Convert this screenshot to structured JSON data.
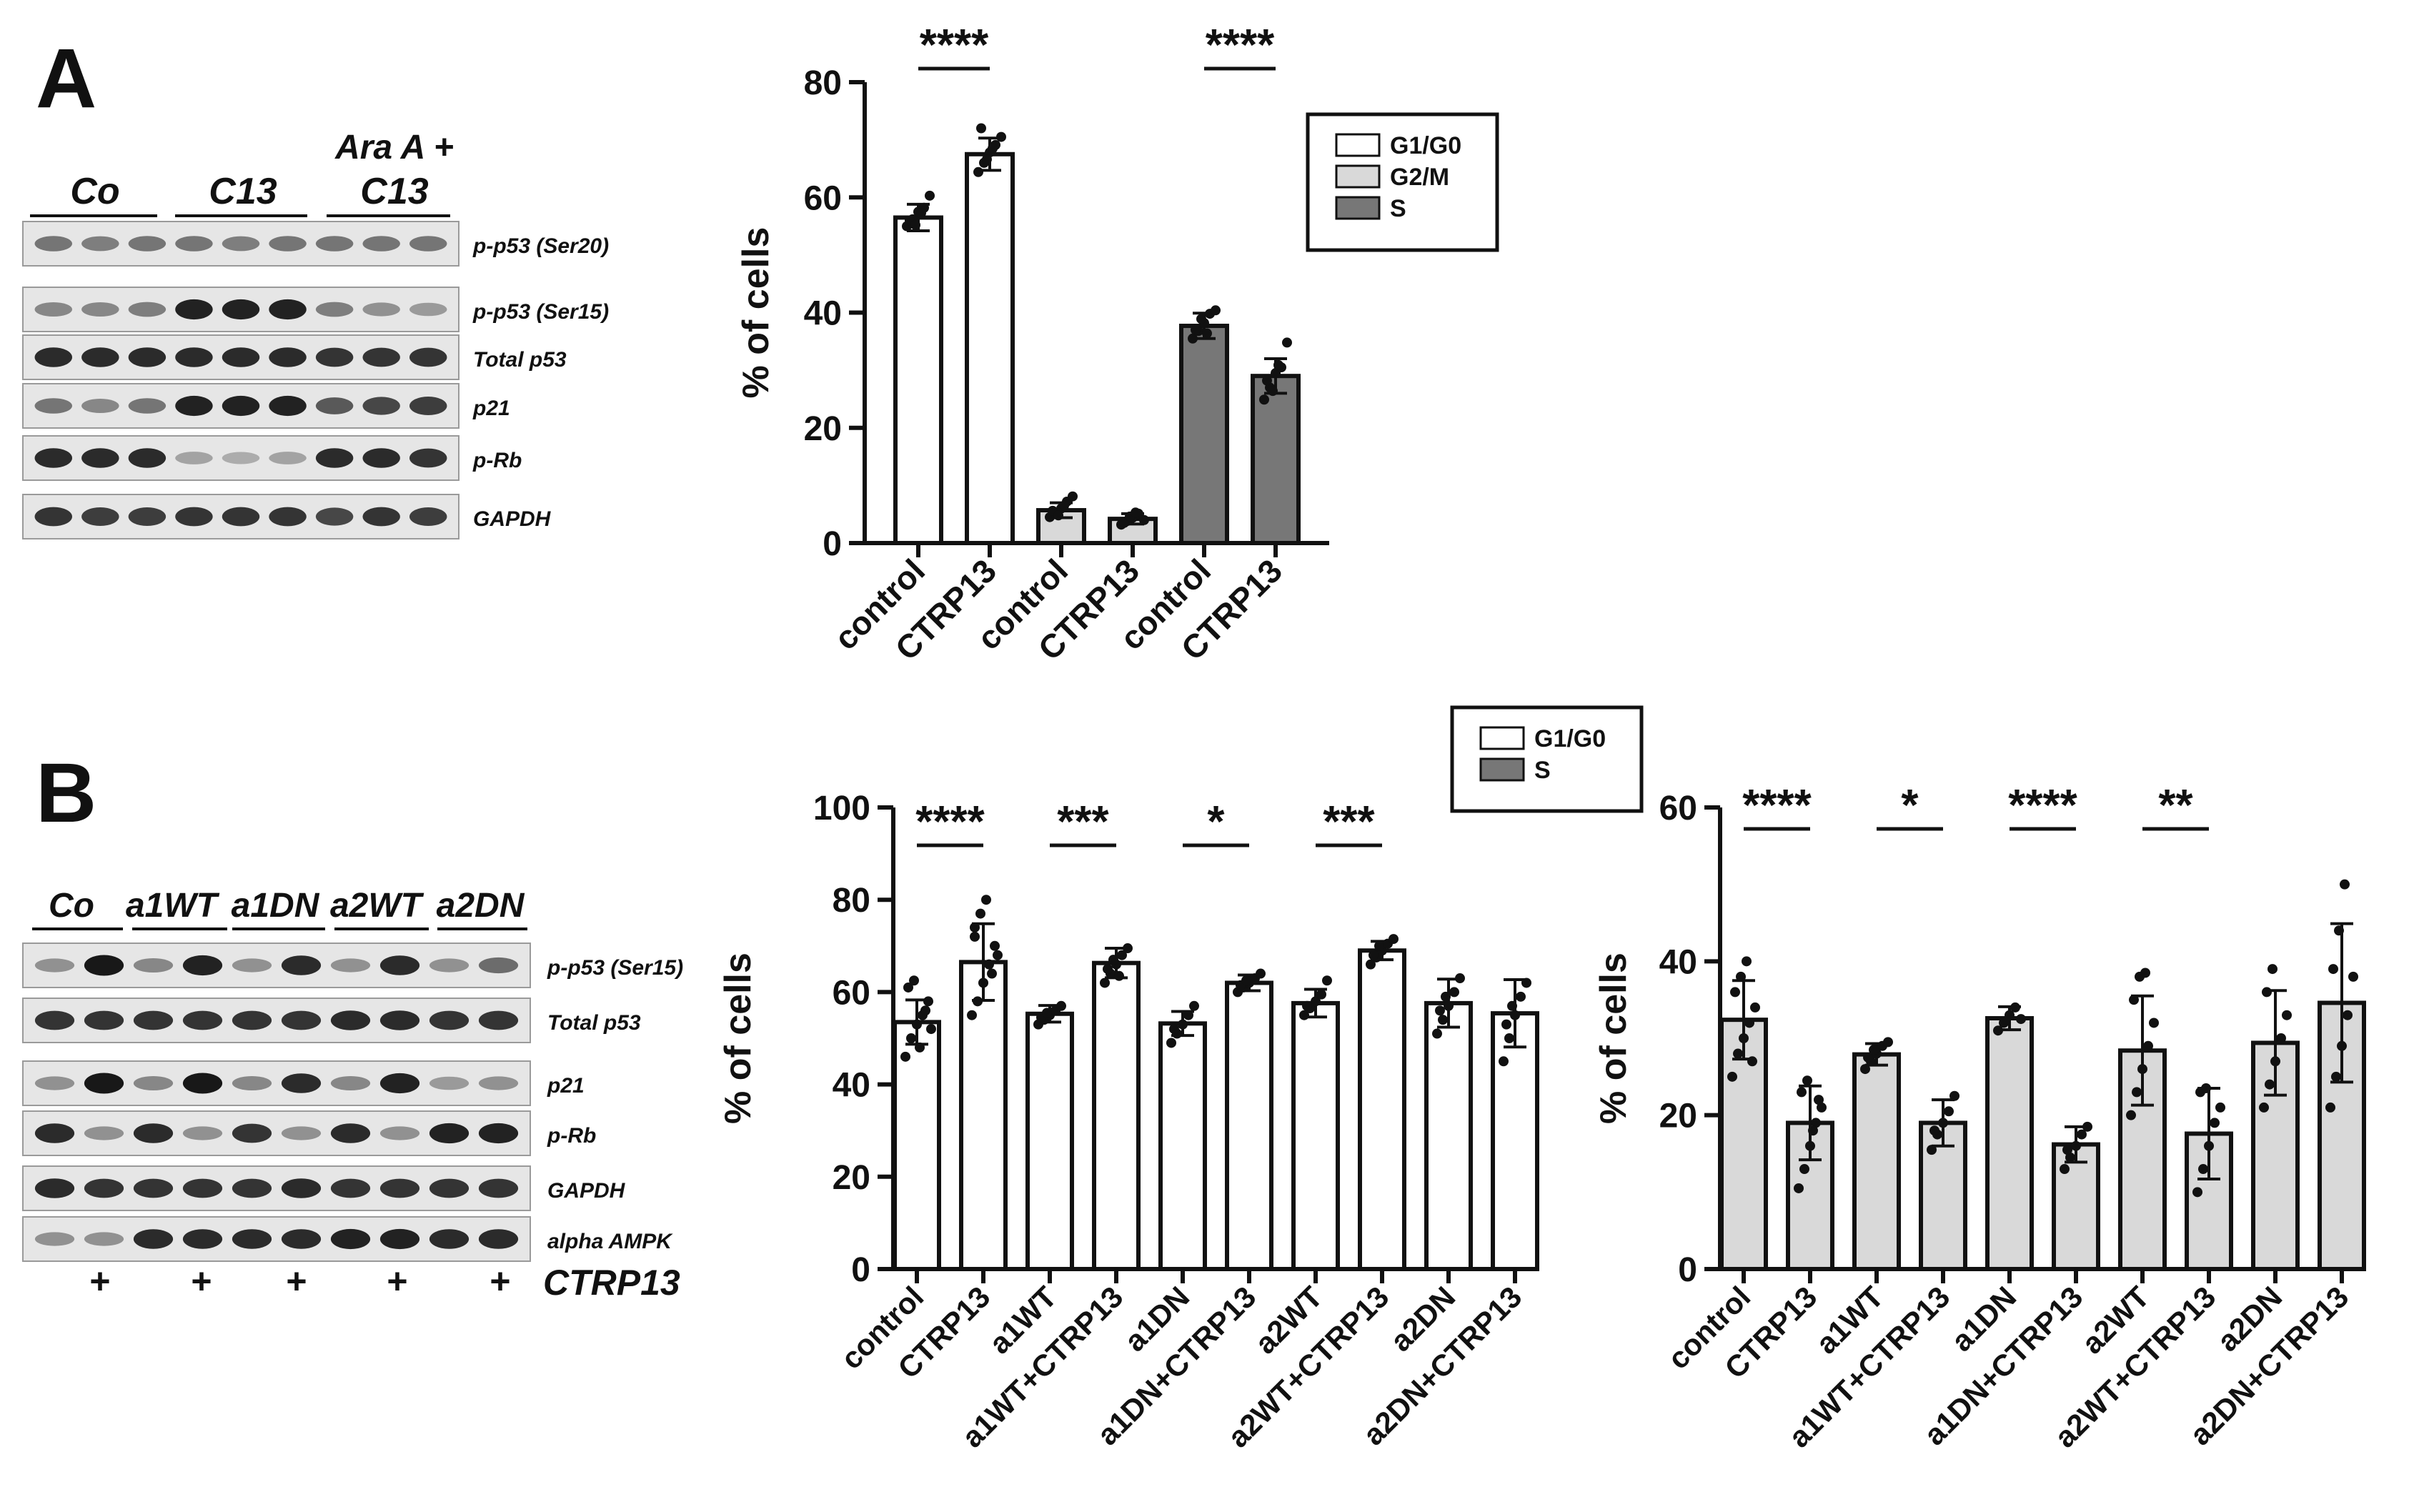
{
  "panels": {
    "a": {
      "letter": "A",
      "blot_groups": [
        {
          "line1": "",
          "line2": "Co"
        },
        {
          "line1": "",
          "line2": "C13"
        },
        {
          "line1": "Ara A +",
          "line2": "C13"
        }
      ],
      "blot_rows": [
        {
          "label": "p-p53 (Ser20)",
          "bands": [
            0.45,
            0.4,
            0.45,
            0.45,
            0.4,
            0.45,
            0.45,
            0.45,
            0.45
          ]
        },
        {
          "label": "p-p53 (Ser15)",
          "bands": [
            0.35,
            0.35,
            0.4,
            0.9,
            0.9,
            0.9,
            0.4,
            0.3,
            0.25
          ]
        },
        {
          "label": "Total p53",
          "bands": [
            0.85,
            0.85,
            0.85,
            0.85,
            0.85,
            0.85,
            0.8,
            0.8,
            0.8
          ]
        },
        {
          "label": "p21",
          "bands": [
            0.45,
            0.35,
            0.45,
            0.9,
            0.9,
            0.9,
            0.6,
            0.7,
            0.75
          ]
        },
        {
          "label": "p-Rb",
          "bands": [
            0.85,
            0.85,
            0.85,
            0.2,
            0.15,
            0.2,
            0.85,
            0.85,
            0.8
          ]
        },
        {
          "label": "GAPDH",
          "bands": [
            0.8,
            0.75,
            0.75,
            0.8,
            0.8,
            0.8,
            0.7,
            0.8,
            0.75
          ]
        }
      ]
    },
    "b": {
      "letter": "B",
      "blot_groups": [
        "Co",
        "a1WT",
        "a1DN",
        "a2WT",
        "a2DN"
      ],
      "treatment_mark": "+",
      "treatment_label": "CTRP13",
      "blot_rows": [
        {
          "label": "p-p53 (Ser15)",
          "bands": [
            0.3,
            0.95,
            0.35,
            0.9,
            0.3,
            0.85,
            0.3,
            0.85,
            0.3,
            0.5
          ]
        },
        {
          "label": "Total p53",
          "bands": [
            0.8,
            0.8,
            0.8,
            0.8,
            0.8,
            0.8,
            0.85,
            0.85,
            0.8,
            0.8
          ]
        },
        {
          "label": "p21",
          "bands": [
            0.3,
            0.95,
            0.35,
            0.95,
            0.35,
            0.85,
            0.35,
            0.9,
            0.25,
            0.3
          ]
        },
        {
          "label": "p-Rb",
          "bands": [
            0.85,
            0.3,
            0.85,
            0.3,
            0.8,
            0.3,
            0.85,
            0.3,
            0.9,
            0.9
          ]
        },
        {
          "label": "GAPDH",
          "bands": [
            0.85,
            0.8,
            0.8,
            0.8,
            0.8,
            0.85,
            0.8,
            0.8,
            0.8,
            0.8
          ]
        },
        {
          "label": "alpha AMPK",
          "bands": [
            0.3,
            0.3,
            0.85,
            0.85,
            0.85,
            0.85,
            0.9,
            0.9,
            0.85,
            0.85
          ]
        }
      ]
    }
  },
  "chart_data": [
    {
      "id": "A-cell-cycle",
      "type": "bar",
      "ylabel": "% of cells",
      "ylim": [
        0,
        80
      ],
      "yticks": [
        0,
        20,
        40,
        60,
        80
      ],
      "categories": [
        "control",
        "CTRP13",
        "control",
        "CTRP13",
        "control",
        "CTRP13"
      ],
      "values": [
        56.5,
        67.5,
        5.7,
        4.2,
        37.7,
        29.0
      ],
      "errors": [
        2.3,
        2.8,
        1.3,
        0.9,
        2.2,
        3.0
      ],
      "bar_series": [
        0,
        0,
        1,
        1,
        2,
        2
      ],
      "legend": [
        {
          "name": "G1/G0",
          "color": "#ffffff"
        },
        {
          "name": "G2/M",
          "color": "#d9d9d9"
        },
        {
          "name": "S",
          "color": "#777777"
        }
      ],
      "significance": [
        {
          "from": 0,
          "to": 1,
          "label": "****"
        },
        {
          "from": 4,
          "to": 5,
          "label": "****"
        }
      ],
      "points": [
        [
          55.0,
          56.2,
          57.5,
          58.2,
          60.3,
          56.0,
          55.2,
          57.3
        ],
        [
          64.4,
          66.0,
          67.8,
          69.1,
          70.5,
          72.0,
          66.6,
          68.5
        ],
        [
          4.5,
          5.2,
          6.0,
          7.2,
          8.1,
          5.6,
          4.8,
          6.5
        ],
        [
          3.2,
          3.8,
          4.4,
          5.1,
          4.0,
          3.5,
          4.6,
          5.3
        ],
        [
          35.5,
          36.8,
          38.2,
          39.8,
          40.4,
          37.0,
          38.9,
          36.4
        ],
        [
          24.9,
          27.0,
          29.5,
          30.5,
          34.8,
          28.2,
          26.4,
          30.9
        ]
      ]
    },
    {
      "id": "B-G1G0",
      "type": "bar",
      "ylabel": "% of cells",
      "ylim": [
        0,
        100
      ],
      "yticks": [
        0,
        20,
        40,
        60,
        80,
        100
      ],
      "categories": [
        "control",
        "CTRP13",
        "a1WT",
        "a1WT+CTRP13",
        "a1DN",
        "a1DN+CTRP13",
        "a2WT",
        "a2WT+CTRP13",
        "a2DN",
        "a2DN+CTRP13"
      ],
      "values": [
        53.5,
        66.5,
        55.3,
        66.3,
        53.2,
        62.0,
        57.6,
        69.0,
        57.6,
        55.4
      ],
      "errors": [
        4.8,
        8.3,
        1.8,
        3.2,
        2.6,
        1.7,
        3.0,
        2.0,
        5.2,
        7.3
      ],
      "bar_series": [
        0,
        0,
        0,
        0,
        0,
        0,
        0,
        0,
        0,
        0
      ],
      "legend": [
        {
          "name": "G1/G0",
          "color": "#ffffff"
        },
        {
          "name": "S",
          "color": "#777777"
        }
      ],
      "significance": [
        {
          "from": 0,
          "to": 1,
          "label": "****"
        },
        {
          "from": 2,
          "to": 3,
          "label": "***"
        },
        {
          "from": 4,
          "to": 5,
          "label": "*"
        },
        {
          "from": 6,
          "to": 7,
          "label": "***"
        }
      ],
      "points": [
        [
          46.0,
          50.0,
          53.0,
          55.0,
          58.0,
          61.0,
          62.5,
          48.0,
          56.0,
          52.0
        ],
        [
          55.0,
          58.0,
          62.0,
          66.0,
          70.0,
          74.0,
          77.0,
          80.0,
          64.0,
          68.0,
          72.0
        ],
        [
          53.0,
          54.0,
          55.0,
          56.0,
          57.0,
          54.5,
          55.5
        ],
        [
          62.0,
          64.0,
          66.0,
          68.0,
          69.5,
          65.0,
          67.0,
          63.5
        ],
        [
          49.0,
          51.0,
          53.0,
          55.0,
          57.0,
          52.0
        ],
        [
          60.0,
          61.0,
          62.0,
          63.0,
          64.0,
          61.5,
          62.5
        ],
        [
          55.0,
          56.5,
          58.0,
          59.5,
          62.5,
          57.0
        ],
        [
          66.0,
          67.5,
          69.0,
          70.5,
          71.5,
          68.0,
          70.0
        ],
        [
          51.0,
          54.0,
          57.0,
          60.0,
          63.0,
          56.0,
          59.0
        ],
        [
          45.0,
          50.0,
          55.0,
          59.0,
          62.0,
          53.0,
          57.0
        ]
      ]
    },
    {
      "id": "B-S",
      "type": "bar",
      "ylabel": "% of cells",
      "ylim": [
        0,
        60
      ],
      "yticks": [
        0,
        20,
        40,
        60
      ],
      "categories": [
        "control",
        "CTRP13",
        "a1WT",
        "a1WT+CTRP13",
        "a1DN",
        "a1DN+CTRP13",
        "a2WT",
        "a2WT+CTRP13",
        "a2DN",
        "a2DN+CTRP13"
      ],
      "values": [
        32.4,
        19.0,
        27.9,
        19.0,
        32.6,
        16.2,
        28.4,
        17.6,
        29.4,
        34.6
      ],
      "errors": [
        5.1,
        4.8,
        1.4,
        3.0,
        1.5,
        2.3,
        7.1,
        5.9,
        6.8,
        10.3
      ],
      "bar_series": [
        1,
        1,
        1,
        1,
        1,
        1,
        1,
        1,
        1,
        1
      ],
      "legend": [],
      "significance": [
        {
          "from": 0,
          "to": 1,
          "label": "****"
        },
        {
          "from": 2,
          "to": 3,
          "label": "*"
        },
        {
          "from": 4,
          "to": 5,
          "label": "****"
        },
        {
          "from": 6,
          "to": 7,
          "label": "**"
        }
      ],
      "points": [
        [
          25.0,
          28.0,
          30.0,
          32.0,
          34.0,
          36.0,
          38.0,
          40.0,
          27.0
        ],
        [
          10.5,
          13.0,
          16.0,
          19.0,
          21.0,
          23.0,
          24.5,
          18.0,
          22.0
        ],
        [
          26.0,
          27.0,
          28.0,
          29.0,
          29.5,
          27.5,
          28.5
        ],
        [
          15.5,
          17.5,
          19.0,
          20.5,
          22.5,
          18.0
        ],
        [
          31.0,
          32.0,
          33.0,
          34.0,
          32.5
        ],
        [
          13.0,
          14.5,
          16.0,
          17.5,
          18.5,
          15.5
        ],
        [
          20.0,
          23.0,
          26.0,
          29.0,
          32.0,
          35.0,
          38.0,
          38.5
        ],
        [
          10.0,
          13.0,
          16.0,
          19.0,
          21.0,
          23.0,
          23.5
        ],
        [
          21.0,
          24.0,
          27.0,
          30.0,
          33.0,
          36.0,
          39.0
        ],
        [
          21.0,
          25.0,
          29.0,
          33.0,
          38.0,
          39.0,
          44.0,
          50.0
        ]
      ]
    }
  ]
}
